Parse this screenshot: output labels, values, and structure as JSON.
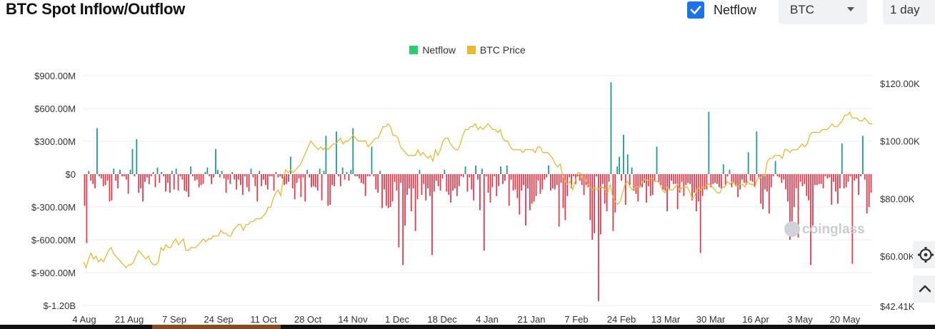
{
  "header": {
    "title": "BTC Spot Inflow/Outflow",
    "netflow_checkbox_label": "Netflow",
    "coin_select_value": "BTC",
    "interval_select_value": "1 day"
  },
  "watermark": "coinglass",
  "colors": {
    "netflow_positive": "#1e9e8a",
    "netflow_negative": "#e8394d",
    "netflow_legend": "#2ecc71",
    "price_line": "#e8b931",
    "checkbox": "#1a73e8"
  },
  "icons": [
    "checkbox-icon",
    "caret-down-icon",
    "gear-icon",
    "chevron-up-icon",
    "coinglass-logo-icon"
  ],
  "chart_data": {
    "type": "bar",
    "legend": [
      "Netflow",
      "BTC Price"
    ],
    "legend_position": "top-center",
    "grid": true,
    "x_tick_labels": [
      "4 Aug",
      "21 Aug",
      "7 Sep",
      "24 Sep",
      "11 Oct",
      "28 Oct",
      "14 Nov",
      "1 Dec",
      "18 Dec",
      "4 Jan",
      "21 Jan",
      "7 Feb",
      "24 Feb",
      "13 Mar",
      "30 Mar",
      "16 Apr",
      "3 May",
      "20 May"
    ],
    "left_axis": {
      "ticks": [
        "$900.00M",
        "$600.00M",
        "$300.00M",
        "$0",
        "$-300.00M",
        "$-600.00M",
        "$-900.00M",
        "$-1.20B"
      ],
      "values": [
        900,
        600,
        300,
        0,
        -300,
        -600,
        -900,
        -1200
      ],
      "unit": "M USD"
    },
    "right_axis": {
      "ticks": [
        "$120.00K",
        "$100.00K",
        "$80.00K",
        "$60.00K",
        "$42.41K"
      ],
      "values": [
        120,
        100,
        80,
        60,
        42.41
      ],
      "unit": "K USD"
    },
    "series": [
      {
        "name": "Netflow",
        "type": "bar",
        "values": [
          -290,
          -630,
          30,
          -60,
          -90,
          -130,
          420,
          -20,
          -40,
          -110,
          -100,
          -60,
          -250,
          -240,
          50,
          -60,
          -130,
          40,
          -20,
          -20,
          -50,
          -180,
          40,
          230,
          -20,
          320,
          -170,
          -130,
          -250,
          -70,
          -30,
          -90,
          -20,
          20,
          -120,
          60,
          -80,
          20,
          -20,
          -160,
          -80,
          -170,
          30,
          -140,
          50,
          -150,
          -20,
          -50,
          -150,
          -160,
          -210,
          70,
          -20,
          -60,
          -50,
          -120,
          -100,
          -90,
          20,
          60,
          -20,
          -90,
          -30,
          230,
          40,
          -30,
          30,
          -40,
          -170,
          -50,
          -90,
          20,
          -50,
          -140,
          -50,
          -100,
          -190,
          -20,
          -120,
          -160,
          50,
          -30,
          -110,
          -250,
          30,
          -110,
          -50,
          -100,
          -140,
          -20,
          -20,
          -150,
          20,
          -30,
          -20,
          -40,
          -100,
          -90,
          -70,
          160,
          -130,
          -230,
          -80,
          -40,
          -210,
          -30,
          -250,
          40,
          -30,
          -120,
          -110,
          -120,
          -150,
          50,
          -240,
          30,
          350,
          -290,
          -280,
          -100,
          -110,
          390,
          -20,
          -110,
          60,
          -50,
          20,
          -60,
          40,
          420,
          -20,
          -20,
          -40,
          -80,
          -90,
          -200,
          -20,
          -20,
          250,
          -20,
          -140,
          -170,
          30,
          -310,
          -140,
          -290,
          -310,
          -300,
          -250,
          -70,
          -150,
          -670,
          -80,
          -830,
          -470,
          -190,
          -130,
          -340,
          -130,
          -520,
          -230,
          40,
          -190,
          -90,
          -240,
          -130,
          -200,
          -740,
          -160,
          -60,
          -110,
          -150,
          -40,
          40,
          -160,
          -190,
          -260,
          -150,
          -130,
          -200,
          -110,
          -20,
          -30,
          70,
          -160,
          -30,
          -140,
          -240,
          80,
          -50,
          -330,
          50,
          -700,
          -20,
          -170,
          -260,
          -120,
          -20,
          -200,
          -110,
          70,
          -90,
          -60,
          80,
          -290,
          -50,
          -150,
          -140,
          -220,
          -370,
          -150,
          -100,
          -470,
          -130,
          -330,
          -270,
          -250,
          -200,
          -60,
          -180,
          -140,
          -50,
          -30,
          80,
          -150,
          -130,
          -140,
          -100,
          -480,
          -80,
          -310,
          -420,
          -200,
          -30,
          -130,
          -20,
          -90,
          -20,
          -60,
          -100,
          -190,
          -100,
          -120,
          -420,
          -600,
          -540,
          -20,
          -1160,
          -550,
          -90,
          -270,
          -340,
          -70,
          840,
          -520,
          -350,
          70,
          160,
          -60,
          360,
          -280,
          180,
          -100,
          60,
          -150,
          -180,
          -250,
          -120,
          -120,
          -80,
          -260,
          -110,
          -200,
          -190,
          -70,
          250,
          -70,
          -100,
          -140,
          -150,
          -340,
          -140,
          -60,
          -90,
          -90,
          -320,
          -170,
          -70,
          -200,
          -100,
          -80,
          -90,
          -240,
          -170,
          -340,
          -250,
          -720,
          -200,
          -140,
          -140,
          570,
          -120,
          -90,
          -80,
          -90,
          -120,
          -130,
          90,
          -100,
          -20,
          40,
          -120,
          -80,
          -110,
          -210,
          -140,
          -50,
          -80,
          -100,
          200,
          -60,
          -70,
          -110,
          390,
          -30,
          -270,
          -320,
          -140,
          -160,
          -360,
          -120,
          -20,
          120,
          -20,
          -30,
          -80,
          -50,
          -140,
          -250,
          -600,
          -450,
          -300,
          -130,
          -580,
          -70,
          -110,
          -90,
          -200,
          -240,
          -830,
          -470,
          -100,
          -100,
          -90,
          -90,
          -130,
          -20,
          -40,
          -30,
          -280,
          -70,
          -160,
          -270,
          -130,
          280,
          -130,
          -120,
          -70,
          -20,
          -820,
          -60,
          -40,
          -190,
          -20,
          350,
          -50,
          -360,
          -300,
          -170
        ]
      },
      {
        "name": "BTC Price",
        "type": "line",
        "axis": "right",
        "values": [
          58,
          56,
          59,
          61,
          59,
          60,
          58,
          59,
          58,
          60,
          62,
          63,
          61,
          60,
          59,
          58,
          57,
          56,
          57,
          57,
          58,
          60,
          62,
          61,
          60,
          59,
          60,
          58,
          57,
          57,
          58,
          63,
          62,
          64,
          63,
          63,
          65,
          66,
          64,
          65,
          66,
          62,
          62,
          63,
          63,
          63,
          64,
          65,
          66,
          65,
          66,
          66,
          67,
          67,
          67,
          69,
          68,
          68,
          67,
          67,
          69,
          70,
          71,
          71,
          69,
          71,
          71,
          72,
          72,
          73,
          73,
          73,
          74,
          75,
          77,
          77,
          80,
          82,
          83,
          81,
          87,
          90,
          89,
          90,
          89,
          90,
          91,
          92,
          94,
          96,
          98,
          100,
          99,
          98,
          97,
          98,
          97,
          98,
          97,
          98,
          99,
          99,
          100,
          101,
          99,
          100,
          100,
          101,
          102,
          101,
          100,
          100,
          100,
          100,
          98,
          99,
          100,
          101,
          101,
          103,
          105,
          105,
          106,
          105,
          102,
          102,
          101,
          98,
          97,
          96,
          95,
          95,
          95,
          95,
          97,
          95,
          96,
          95,
          94,
          95,
          93,
          97,
          95,
          97,
          100,
          101,
          101,
          99,
          98,
          97,
          97,
          99,
          102,
          104,
          104,
          105,
          105,
          106,
          104,
          105,
          104,
          105,
          106,
          105,
          104,
          104,
          103,
          104,
          101,
          100,
          100,
          98,
          97,
          97,
          97,
          97,
          96,
          97,
          97,
          97,
          97,
          96,
          98,
          98,
          96,
          96,
          96,
          95,
          94,
          92,
          91,
          92,
          88,
          86,
          85,
          86,
          83,
          86,
          89,
          89,
          87,
          87,
          85,
          84,
          83,
          84,
          83,
          84,
          84,
          83,
          82,
          85,
          81,
          79,
          78,
          79,
          82,
          85,
          86,
          84,
          83,
          84,
          84,
          84,
          86,
          87,
          86,
          87,
          87,
          86,
          86,
          85,
          83,
          82,
          84,
          83,
          83,
          84,
          85,
          83,
          84,
          84,
          84,
          82,
          80,
          81,
          84,
          83,
          84,
          84,
          85,
          85,
          84,
          83,
          82,
          82,
          84,
          84,
          86,
          85,
          86,
          85,
          84,
          85,
          85,
          84,
          86,
          85,
          85,
          84,
          87,
          87,
          88,
          88,
          93,
          94,
          94,
          95,
          95,
          95,
          94,
          97,
          97,
          96,
          97,
          97,
          97,
          98,
          99,
          98,
          99,
          102,
          103,
          103,
          103,
          103,
          104,
          104,
          104,
          105,
          106,
          105,
          105,
          106,
          107,
          109,
          109,
          110,
          108,
          108,
          108,
          107,
          107,
          108,
          107,
          106,
          106
        ]
      }
    ]
  }
}
